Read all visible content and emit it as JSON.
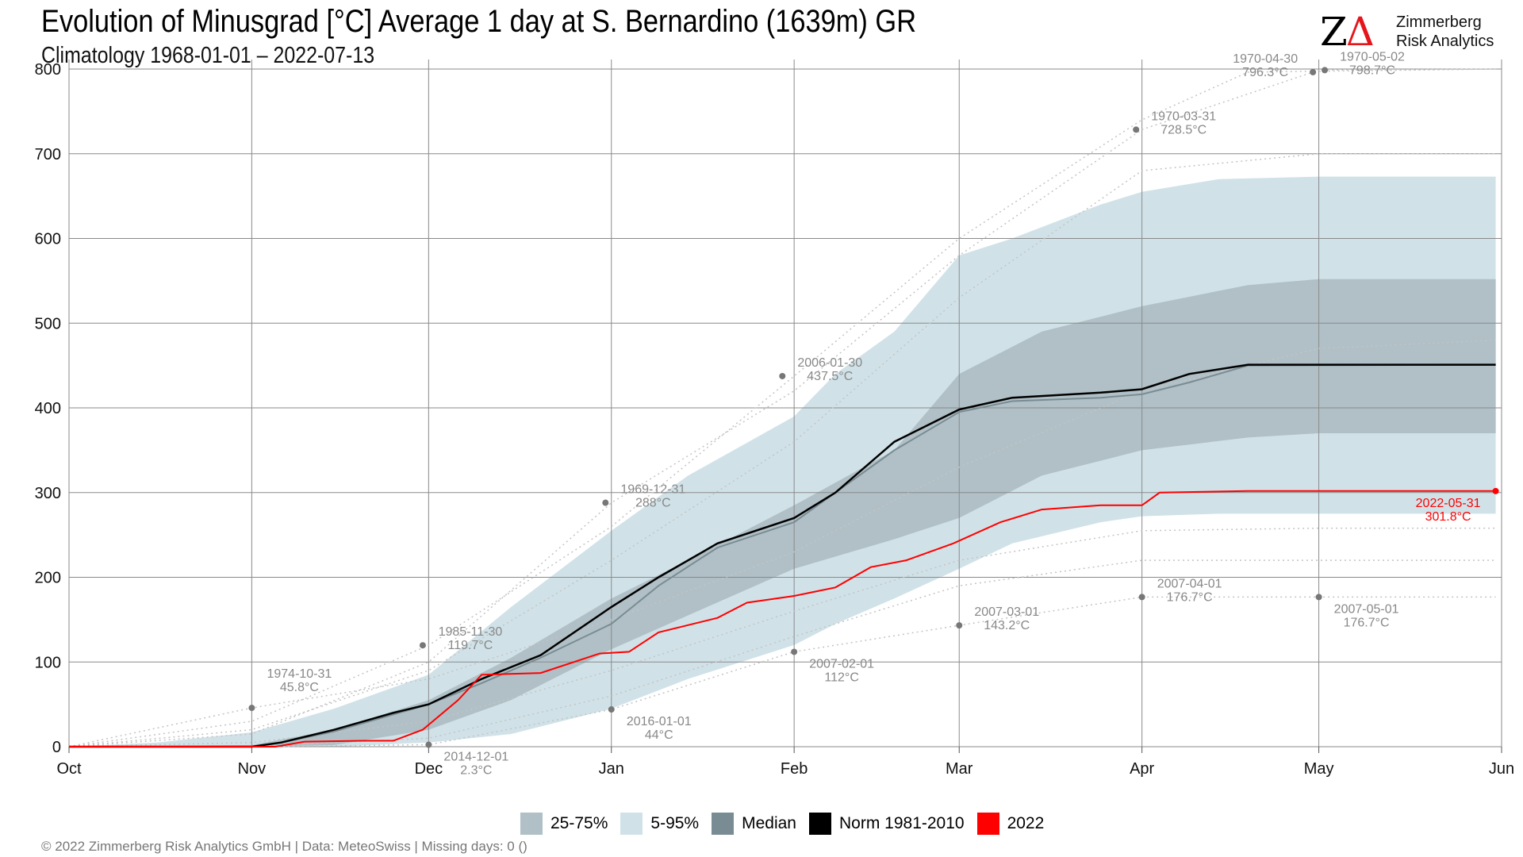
{
  "header": {
    "title": "Evolution of Minusgrad [°C] Average 1 day at S. Bernardino (1639m) GR",
    "subtitle": "Climatology 1968-01-01 – 2022-07-13"
  },
  "logo": {
    "mark_z": "Z",
    "mark_delta": "Δ",
    "line1": "Zimmerberg",
    "line2": "Risk Analytics"
  },
  "footer": {
    "text": "©  2022 Zimmerberg Risk Analytics GmbH | Data: MeteoSwiss | Missing days: 0 ()"
  },
  "legend": {
    "items": [
      {
        "label": "25-75%",
        "color": "#b0c0c6"
      },
      {
        "label": "5-95%",
        "color": "#d0e2e8"
      },
      {
        "label": "Median",
        "color": "#7a8c93"
      },
      {
        "label": "Norm 1981-2010",
        "color": "#000000"
      },
      {
        "label": "2022",
        "color": "#ff0000"
      }
    ]
  },
  "chart_data": {
    "type": "area",
    "x_labels": [
      "Oct",
      "Nov",
      "Dec",
      "Jan",
      "Feb",
      "Mar",
      "Apr",
      "May",
      "Jun"
    ],
    "x_label_days": [
      0,
      31,
      61,
      92,
      123,
      151,
      182,
      212,
      243
    ],
    "xlim": [
      0,
      243
    ],
    "ylim": [
      0,
      800
    ],
    "yticks": [
      0,
      100,
      200,
      300,
      400,
      500,
      600,
      700,
      800
    ],
    "grid": true,
    "colors": {
      "band_5_95": "#d0e2e8",
      "band_25_75": "#b0c0c6",
      "median": "#7a8c93",
      "norm": "#000000",
      "year_2022": "#ff0000",
      "extremes": "#999999"
    },
    "band_5_95": {
      "x": [
        0,
        15,
        31,
        45,
        61,
        75,
        92,
        105,
        123,
        130,
        140,
        151,
        160,
        175,
        182,
        195,
        212,
        242
      ],
      "upper": [
        0,
        5,
        17,
        45,
        85,
        165,
        255,
        320,
        390,
        440,
        490,
        580,
        600,
        640,
        655,
        670,
        673,
        673
      ],
      "lower": [
        0,
        0,
        0,
        0,
        5,
        15,
        45,
        80,
        120,
        145,
        175,
        210,
        240,
        265,
        272,
        275,
        275,
        275
      ]
    },
    "band_25_75": {
      "x": [
        0,
        31,
        45,
        61,
        75,
        92,
        105,
        123,
        140,
        151,
        165,
        182,
        200,
        212,
        242
      ],
      "upper": [
        0,
        2,
        20,
        55,
        105,
        175,
        220,
        285,
        350,
        440,
        490,
        520,
        545,
        552,
        552
      ],
      "lower": [
        0,
        0,
        2,
        20,
        55,
        115,
        155,
        210,
        245,
        270,
        320,
        350,
        365,
        370,
        370
      ]
    },
    "median": {
      "x": [
        0,
        31,
        36,
        45,
        55,
        61,
        70,
        80,
        92,
        100,
        110,
        123,
        130,
        140,
        151,
        160,
        175,
        182,
        190,
        200,
        242
      ],
      "y": [
        0,
        0,
        5,
        18,
        38,
        50,
        75,
        105,
        145,
        190,
        235,
        265,
        300,
        350,
        395,
        408,
        412,
        416,
        430,
        450,
        451
      ]
    },
    "norm_1981_2010": {
      "x": [
        0,
        31,
        36,
        45,
        55,
        61,
        70,
        80,
        92,
        100,
        110,
        123,
        130,
        140,
        151,
        160,
        175,
        182,
        190,
        200,
        242
      ],
      "y": [
        0,
        0,
        5,
        20,
        40,
        50,
        80,
        108,
        165,
        200,
        240,
        270,
        300,
        360,
        398,
        412,
        418,
        422,
        440,
        451,
        451
      ]
    },
    "year_2022": {
      "x": [
        0,
        35,
        40,
        50,
        55,
        60,
        66,
        70,
        80,
        90,
        95,
        100,
        110,
        115,
        123,
        130,
        136,
        142,
        150,
        158,
        165,
        175,
        182,
        185,
        200,
        242
      ],
      "y": [
        0,
        0,
        6,
        7,
        7,
        20,
        55,
        85,
        87,
        110,
        112,
        135,
        152,
        170,
        178,
        188,
        212,
        220,
        240,
        265,
        280,
        285,
        285,
        300,
        301.8,
        301.8
      ]
    },
    "extreme_traces": [
      {
        "x": [
          0,
          31,
          61,
          92,
          123,
          151,
          182,
          212,
          242
        ],
        "y": [
          0,
          45.8,
          80,
          150,
          230,
          330,
          420,
          470,
          480
        ]
      },
      {
        "x": [
          0,
          31,
          61,
          92,
          123,
          151,
          182,
          200,
          242
        ],
        "y": [
          0,
          30,
          119.7,
          260,
          437.5,
          600,
          740,
          796.3,
          800
        ]
      },
      {
        "x": [
          0,
          31,
          61,
          92,
          123,
          151,
          182,
          212,
          242
        ],
        "y": [
          0,
          15,
          100,
          288,
          420,
          580,
          728.5,
          798.7,
          800
        ]
      },
      {
        "x": [
          0,
          31,
          61,
          92,
          123,
          151,
          182,
          212,
          242
        ],
        "y": [
          0,
          0,
          2.3,
          44,
          112,
          143.2,
          176.7,
          176.7,
          176.7
        ]
      },
      {
        "x": [
          0,
          31,
          61,
          92,
          123,
          151,
          182,
          212,
          242
        ],
        "y": [
          0,
          0,
          10,
          60,
          130,
          190,
          220,
          220,
          220
        ]
      },
      {
        "x": [
          0,
          31,
          61,
          92,
          123,
          151,
          182,
          212,
          242
        ],
        "y": [
          0,
          5,
          30,
          90,
          160,
          220,
          255,
          258,
          258
        ]
      },
      {
        "x": [
          0,
          31,
          61,
          92,
          123,
          151,
          182,
          212,
          242
        ],
        "y": [
          0,
          20,
          90,
          220,
          360,
          530,
          680,
          700,
          700
        ]
      }
    ],
    "annotations": [
      {
        "x": 31,
        "y": 45.8,
        "date": "1974-10-31",
        "value": "45.8°C",
        "color": "#888888"
      },
      {
        "x": 60,
        "y": 119.7,
        "date": "1985-11-30",
        "value": "119.7°C",
        "color": "#888888"
      },
      {
        "x": 61,
        "y": 2.3,
        "date": "2014-12-01",
        "value": "2.3°C",
        "color": "#888888"
      },
      {
        "x": 91,
        "y": 288,
        "date": "1969-12-31",
        "value": "288°C",
        "color": "#888888"
      },
      {
        "x": 92,
        "y": 44,
        "date": "2016-01-01",
        "value": "44°C",
        "color": "#888888"
      },
      {
        "x": 121,
        "y": 437.5,
        "date": "2006-01-30",
        "value": "437.5°C",
        "color": "#888888"
      },
      {
        "x": 123,
        "y": 112,
        "date": "2007-02-01",
        "value": "112°C",
        "color": "#888888"
      },
      {
        "x": 151,
        "y": 143.2,
        "date": "2007-03-01",
        "value": "143.2°C",
        "color": "#888888"
      },
      {
        "x": 181,
        "y": 728.5,
        "date": "1970-03-31",
        "value": "728.5°C",
        "color": "#888888"
      },
      {
        "x": 182,
        "y": 176.7,
        "date": "2007-04-01",
        "value": "176.7°C",
        "color": "#888888"
      },
      {
        "x": 211,
        "y": 796.3,
        "date": "1970-04-30",
        "value": "796.3°C",
        "color": "#888888"
      },
      {
        "x": 213,
        "y": 798.7,
        "date": "1970-05-02",
        "value": "798.7°C",
        "color": "#888888"
      },
      {
        "x": 212,
        "y": 176.7,
        "date": "2007-05-01",
        "value": "176.7°C",
        "color": "#888888"
      },
      {
        "x": 242,
        "y": 301.8,
        "date": "2022-05-31",
        "value": "301.8°C",
        "color": "#ff0000"
      }
    ]
  }
}
